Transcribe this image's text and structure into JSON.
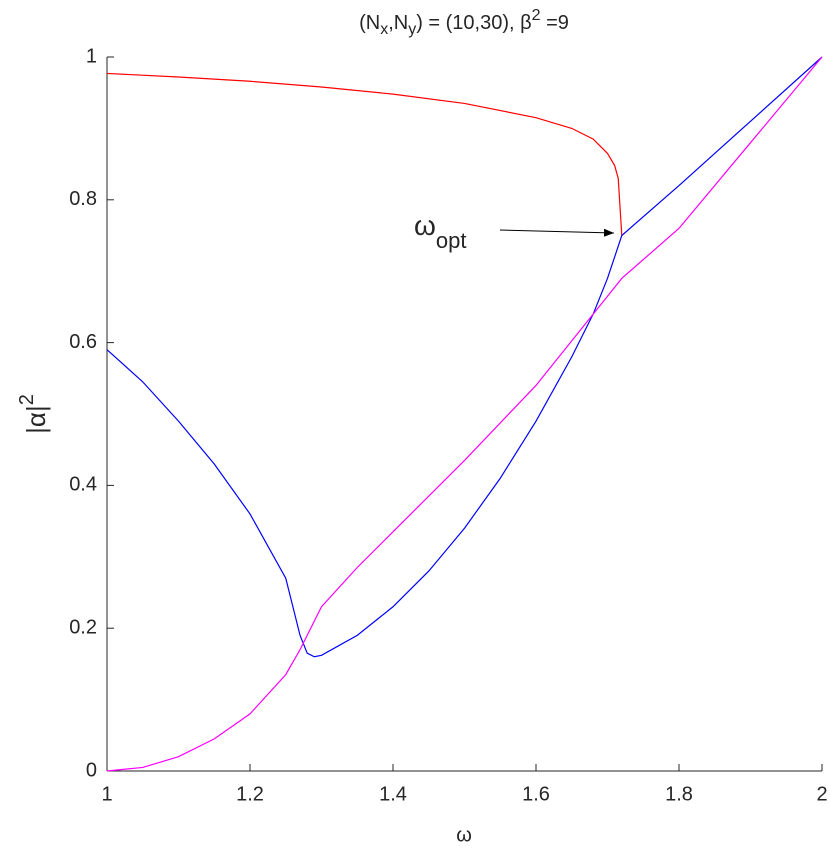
{
  "chart_data": {
    "type": "line",
    "title": [
      "(N",
      "x",
      ",N",
      "y",
      ") = (10,30),  ",
      "β",
      "2",
      " =9"
    ],
    "x_label": "ω",
    "y_label": [
      "|α|",
      "2"
    ],
    "annotation": [
      "ω",
      "opt"
    ],
    "xlim": [
      1,
      2
    ],
    "xticks": [
      1,
      1.2,
      1.4,
      1.6,
      1.8,
      2
    ],
    "ylim": [
      0,
      1
    ],
    "yticks": [
      0,
      0.2,
      0.4,
      0.6,
      0.8,
      1
    ],
    "series": [
      {
        "color": "#ff0000",
        "x": [
          1,
          1.1,
          1.2,
          1.3,
          1.4,
          1.5,
          1.6,
          1.65,
          1.68,
          1.7,
          1.71,
          1.715,
          1.72
        ],
        "values": [
          0.977,
          0.972,
          0.966,
          0.958,
          0.948,
          0.935,
          0.915,
          0.9,
          0.885,
          0.865,
          0.848,
          0.83,
          0.75
        ]
      },
      {
        "color": "#0000ff",
        "x": [
          1,
          1.05,
          1.1,
          1.15,
          1.2,
          1.25,
          1.27,
          1.28,
          1.29,
          1.3,
          1.35,
          1.4,
          1.45,
          1.5,
          1.55,
          1.6,
          1.65,
          1.68,
          1.7,
          1.71,
          1.72,
          1.8,
          1.9,
          2
        ],
        "values": [
          0.59,
          0.545,
          0.49,
          0.43,
          0.36,
          0.27,
          0.19,
          0.165,
          0.16,
          0.162,
          0.19,
          0.23,
          0.28,
          0.34,
          0.41,
          0.49,
          0.58,
          0.64,
          0.69,
          0.72,
          0.75,
          0.82,
          0.91,
          1
        ]
      },
      {
        "color": "#ff00ff",
        "x": [
          1,
          1.05,
          1.1,
          1.15,
          1.2,
          1.25,
          1.27,
          1.3,
          1.35,
          1.4,
          1.5,
          1.6,
          1.7,
          1.72,
          1.8,
          1.9,
          2
        ],
        "values": [
          0,
          0.005,
          0.02,
          0.045,
          0.08,
          0.135,
          0.17,
          0.23,
          0.285,
          0.335,
          0.435,
          0.54,
          0.665,
          0.69,
          0.76,
          0.88,
          1
        ]
      }
    ]
  }
}
